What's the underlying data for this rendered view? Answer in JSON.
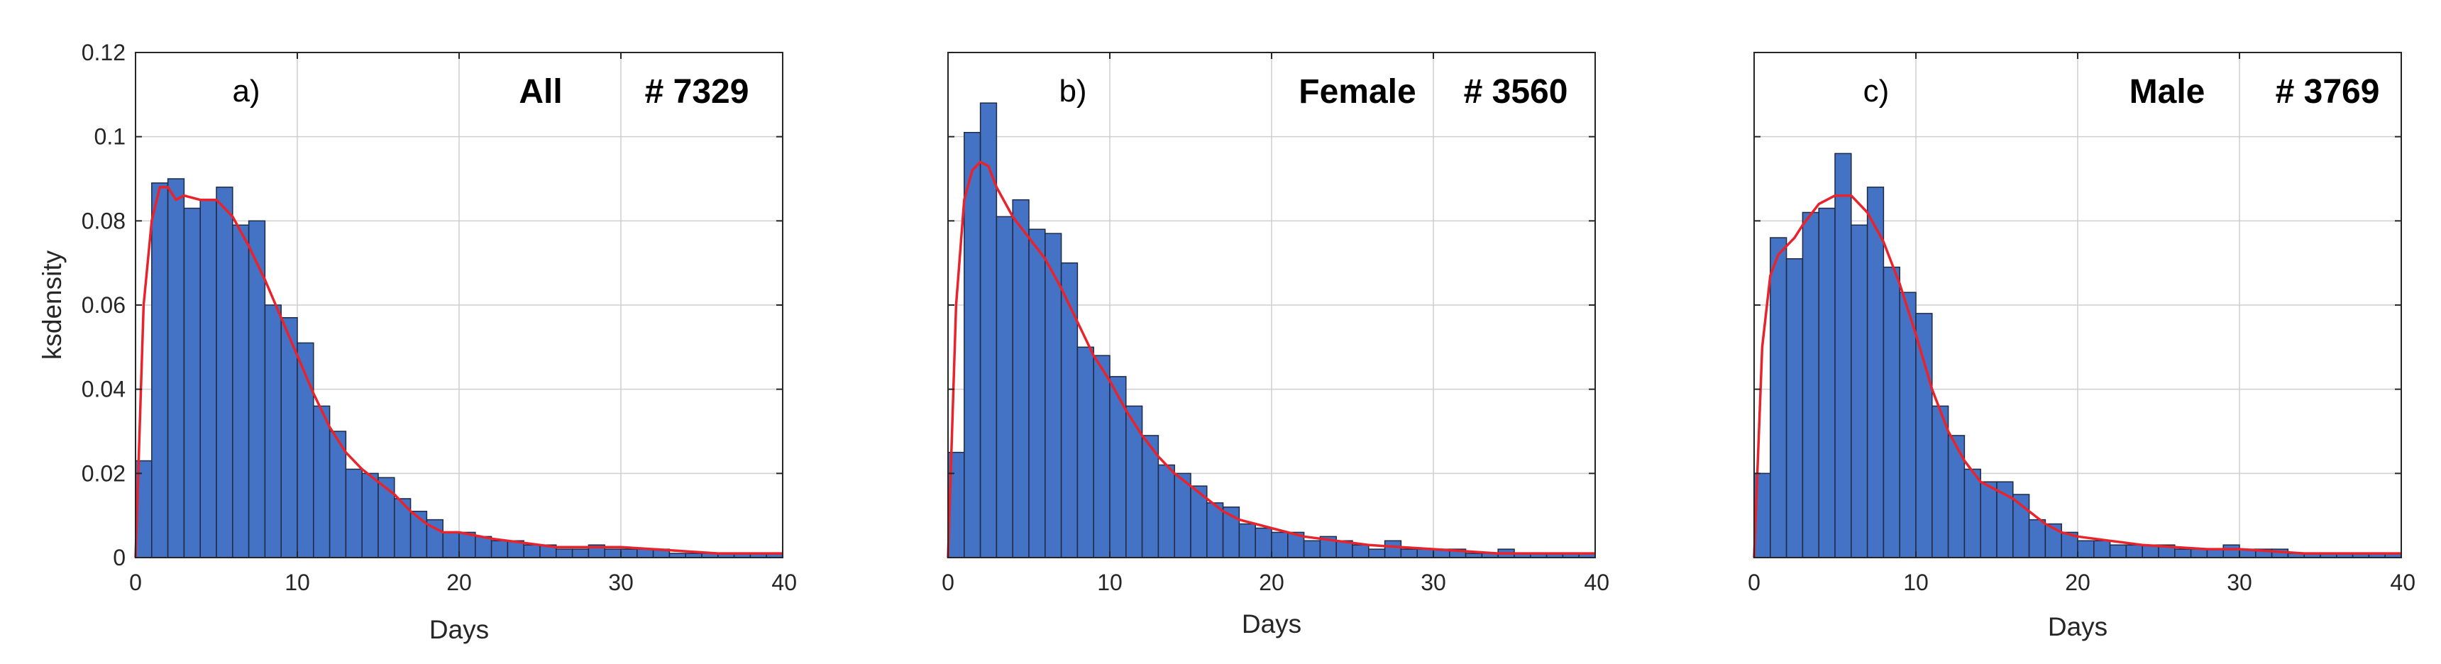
{
  "chart_data": [
    {
      "type": "bar",
      "panel_label": "a)",
      "group": "All",
      "count_label": "# 7329",
      "xlabel": "Days",
      "ylabel": "ksdensity",
      "xlim": [
        0,
        40
      ],
      "ylim": [
        0,
        0.12
      ],
      "xticks": [
        0,
        10,
        20,
        30,
        40
      ],
      "xtick_labels": [
        "0",
        "10",
        "20",
        "30",
        "40"
      ],
      "yticks": [
        0,
        0.02,
        0.04,
        0.06,
        0.08,
        0.1,
        0.12
      ],
      "ytick_labels": [
        "0",
        "0.02",
        "0.04",
        "0.06",
        "0.08",
        "0.1",
        "0.12"
      ],
      "grid": true,
      "bin_width": 1,
      "bar_color": "#4472c4",
      "curve_color": "#e8232c",
      "series": [
        {
          "name": "histogram",
          "values": [
            0.023,
            0.089,
            0.09,
            0.083,
            0.085,
            0.088,
            0.079,
            0.08,
            0.06,
            0.057,
            0.051,
            0.036,
            0.03,
            0.021,
            0.02,
            0.019,
            0.014,
            0.011,
            0.009,
            0.006,
            0.006,
            0.005,
            0.004,
            0.004,
            0.003,
            0.003,
            0.002,
            0.002,
            0.003,
            0.002,
            0.002,
            0.002,
            0.002,
            0.001,
            0.001,
            0.001,
            0.001,
            0.001,
            0.001,
            0.001
          ]
        },
        {
          "name": "ksdensity",
          "x": [
            0,
            0.5,
            1,
            1.5,
            2,
            2.5,
            3,
            4,
            5,
            6,
            7,
            8,
            9,
            10,
            11,
            12,
            13,
            14,
            15,
            16,
            17,
            18,
            19,
            20,
            22,
            24,
            26,
            28,
            30,
            32,
            34,
            36,
            38,
            40
          ],
          "values": [
            0.0,
            0.06,
            0.08,
            0.088,
            0.088,
            0.085,
            0.086,
            0.085,
            0.085,
            0.081,
            0.074,
            0.066,
            0.057,
            0.048,
            0.039,
            0.031,
            0.025,
            0.021,
            0.018,
            0.015,
            0.011,
            0.008,
            0.006,
            0.006,
            0.0045,
            0.0035,
            0.0025,
            0.0025,
            0.0025,
            0.002,
            0.0015,
            0.001,
            0.001,
            0.001
          ]
        }
      ]
    },
    {
      "type": "bar",
      "panel_label": "b)",
      "group": "Female",
      "count_label": "# 3560",
      "xlabel": "Days",
      "ylabel": "",
      "xlim": [
        0,
        40
      ],
      "ylim": [
        0,
        0.12
      ],
      "xticks": [
        0,
        10,
        20,
        30,
        40
      ],
      "xtick_labels": [
        "0",
        "10",
        "20",
        "30",
        "40"
      ],
      "yticks": [
        0,
        0.02,
        0.04,
        0.06,
        0.08,
        0.1,
        0.12
      ],
      "ytick_labels": [],
      "grid": true,
      "bin_width": 1,
      "bar_color": "#4472c4",
      "curve_color": "#e8232c",
      "series": [
        {
          "name": "histogram",
          "values": [
            0.025,
            0.101,
            0.108,
            0.081,
            0.085,
            0.078,
            0.077,
            0.07,
            0.05,
            0.048,
            0.043,
            0.036,
            0.029,
            0.022,
            0.02,
            0.017,
            0.013,
            0.012,
            0.008,
            0.007,
            0.006,
            0.006,
            0.004,
            0.005,
            0.004,
            0.003,
            0.002,
            0.004,
            0.002,
            0.002,
            0.002,
            0.002,
            0.001,
            0.001,
            0.002,
            0.001,
            0.001,
            0.001,
            0.001,
            0.001
          ]
        },
        {
          "name": "ksdensity",
          "x": [
            0,
            0.5,
            1,
            1.5,
            2,
            2.5,
            3,
            4,
            5,
            6,
            7,
            8,
            9,
            10,
            11,
            12,
            13,
            14,
            15,
            16,
            17,
            18,
            19,
            20,
            22,
            24,
            26,
            28,
            30,
            32,
            34,
            36,
            38,
            40
          ],
          "values": [
            0.0,
            0.06,
            0.085,
            0.092,
            0.094,
            0.093,
            0.088,
            0.081,
            0.076,
            0.071,
            0.064,
            0.056,
            0.048,
            0.042,
            0.035,
            0.029,
            0.024,
            0.02,
            0.017,
            0.014,
            0.011,
            0.009,
            0.008,
            0.007,
            0.005,
            0.004,
            0.003,
            0.0025,
            0.002,
            0.0015,
            0.001,
            0.001,
            0.001,
            0.001
          ]
        }
      ]
    },
    {
      "type": "bar",
      "panel_label": "c)",
      "group": "Male",
      "count_label": "# 3769",
      "xlabel": "Days",
      "ylabel": "",
      "xlim": [
        0,
        40
      ],
      "ylim": [
        0,
        0.12
      ],
      "xticks": [
        0,
        10,
        20,
        30,
        40
      ],
      "xtick_labels": [
        "0",
        "10",
        "20",
        "30",
        "40"
      ],
      "yticks": [
        0,
        0.02,
        0.04,
        0.06,
        0.08,
        0.1,
        0.12
      ],
      "ytick_labels": [],
      "grid": true,
      "bin_width": 1,
      "bar_color": "#4472c4",
      "curve_color": "#e8232c",
      "series": [
        {
          "name": "histogram",
          "values": [
            0.02,
            0.076,
            0.071,
            0.082,
            0.083,
            0.096,
            0.079,
            0.088,
            0.069,
            0.063,
            0.058,
            0.036,
            0.029,
            0.021,
            0.018,
            0.018,
            0.015,
            0.009,
            0.008,
            0.006,
            0.004,
            0.004,
            0.003,
            0.003,
            0.003,
            0.003,
            0.002,
            0.002,
            0.002,
            0.003,
            0.002,
            0.002,
            0.002,
            0.001,
            0.001,
            0.001,
            0.001,
            0.001,
            0.001,
            0.001
          ]
        },
        {
          "name": "ksdensity",
          "x": [
            0,
            0.5,
            1,
            1.5,
            2,
            2.5,
            3,
            4,
            5,
            6,
            7,
            8,
            9,
            10,
            11,
            12,
            13,
            14,
            15,
            16,
            17,
            18,
            19,
            20,
            22,
            24,
            26,
            28,
            30,
            32,
            34,
            36,
            38,
            40
          ],
          "values": [
            0.0,
            0.05,
            0.067,
            0.072,
            0.074,
            0.076,
            0.079,
            0.084,
            0.086,
            0.086,
            0.082,
            0.075,
            0.065,
            0.053,
            0.04,
            0.03,
            0.023,
            0.018,
            0.016,
            0.014,
            0.011,
            0.008,
            0.006,
            0.005,
            0.004,
            0.003,
            0.0025,
            0.002,
            0.002,
            0.0015,
            0.001,
            0.001,
            0.001,
            0.001
          ]
        }
      ]
    }
  ]
}
